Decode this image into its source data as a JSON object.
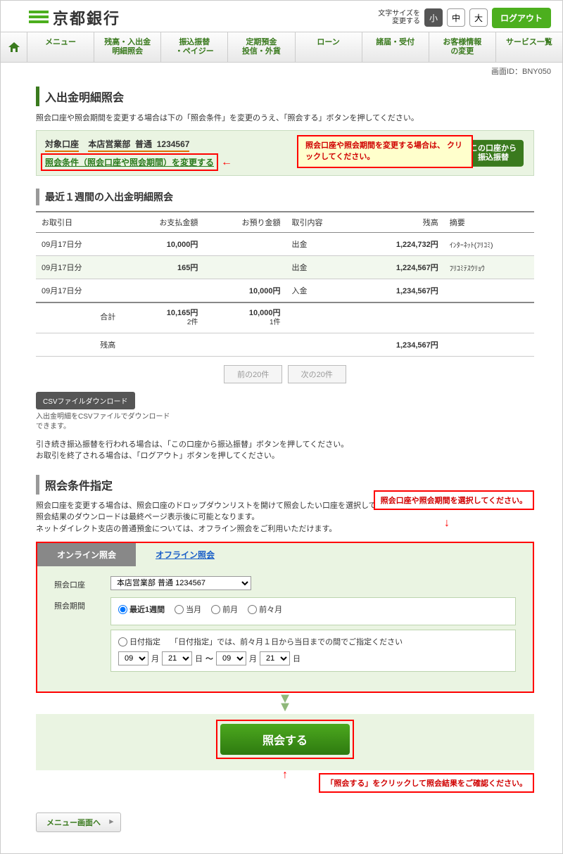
{
  "header": {
    "bank_name": "京都銀行",
    "fontsize_label": "文字サイズを\n変更する",
    "size_small": "小",
    "size_mid": "中",
    "size_large": "大",
    "logout": "ログアウト"
  },
  "nav": {
    "menu": "メニュー",
    "balance": "残高・入出金\n明細照会",
    "transfer": "振込振替\n・ペイジー",
    "deposit": "定期預金\n投信・外貨",
    "loan": "ローン",
    "notice": "諸届・受付",
    "custinfo": "お客様情報\nの変更",
    "services": "サービス一覧"
  },
  "screen_id_label": "画面ID：",
  "screen_id": "BNY050",
  "title": "入出金明細照会",
  "intro": "照会口座や照会期間を変更する場合は下の「照会条件」を変更のうえ、「照会する」ボタンを押してください。",
  "account": {
    "label": "対象口座",
    "branch": "本店営業部",
    "type": "普通",
    "number": "1234567",
    "change_cond": "照会条件（照会口座や照会期間）を変更する",
    "transfer_btn": "この口座から\n振込振替"
  },
  "callouts": {
    "change_cond": "照会口座や照会期間を変更する場合は、\nクリックしてください。",
    "select_cond": "照会口座や照会期間を選択してください。",
    "submit": "「照会する」をクリックして照会結果をご確認ください。"
  },
  "sub_title": "最近１週間の入出金明細照会",
  "columns": {
    "date": "お取引日",
    "pay": "お支払金額",
    "dep": "お預り金額",
    "type": "取引内容",
    "balance": "残高",
    "remarks": "摘要"
  },
  "rows": [
    {
      "date": "09月17日分",
      "pay": "10,000円",
      "dep": "",
      "type": "出金",
      "balance": "1,224,732円",
      "remarks": "ｲﾝﾀｰﾈｯﾄ(ﾌﾘｺﾐ)"
    },
    {
      "date": "09月17日分",
      "pay": "165円",
      "dep": "",
      "type": "出金",
      "balance": "1,224,567円",
      "remarks": "ﾌﾘｺﾐﾃｽｳﾘｮｳ"
    },
    {
      "date": "09月17日分",
      "pay": "",
      "dep": "10,000円",
      "type": "入金",
      "balance": "1,234,567円",
      "remarks": ""
    }
  ],
  "totals": {
    "label": "合計",
    "pay_total": "10,165円",
    "pay_count": "2件",
    "dep_total": "10,000円",
    "dep_count": "1件",
    "balance_label": "残高",
    "balance_value": "1,234,567円"
  },
  "pager": {
    "prev": "前の20件",
    "next": "次の20件"
  },
  "csv": {
    "btn": "CSVファイルダウンロード",
    "desc": "入出金明細をCSVファイルでダウンロード\nできます。"
  },
  "notes": "引き続き振込振替を行われる場合は、「この口座から振込振替」ボタンを押してください。\nお取引を終了される場合は、「ログアウト」ボタンを押してください。",
  "cond_title": "照会条件指定",
  "cond_intro": "照会口座を変更する場合は、照会口座のドロップダウンリストを開けて照会したい口座を選択してく\n照会結果のダウンロードは最終ページ表示後に可能となります。\nネットダイレクト支店の普通預金については、オフライン照会をご利用いただけます。",
  "tabs": {
    "online": "オンライン照会",
    "offline": "オフライン照会"
  },
  "cond": {
    "account_label": "照会口座",
    "account_value": "本店営業部 普通 1234567",
    "period_label": "照会期間",
    "p_recent": "最近1週間",
    "p_this": "当月",
    "p_prev": "前月",
    "p_prev2": "前々月",
    "p_date": "日付指定",
    "p_date_note": "「日付指定」では、前々月１日から当日までの間でご指定ください",
    "m1": "09",
    "d1": "21",
    "m2": "09",
    "d2": "21",
    "month": "月",
    "day": "日",
    "range": "～"
  },
  "submit": "照会する",
  "menu_back": "メニュー画面へ"
}
